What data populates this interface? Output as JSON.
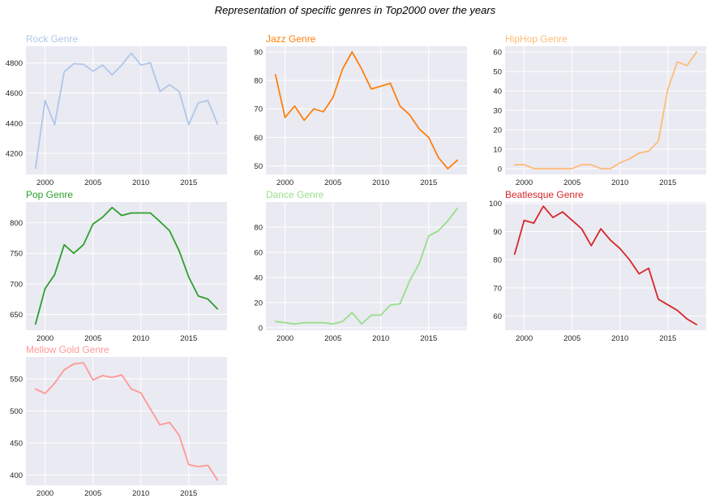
{
  "suptitle": "Representation of specific genres in Top2000 over the years",
  "chart_data": [
    {
      "type": "line",
      "title": "Rock Genre",
      "color": "#aec7e8",
      "x": [
        1999,
        2000,
        2001,
        2002,
        2003,
        2004,
        2005,
        2006,
        2007,
        2008,
        2009,
        2010,
        2011,
        2012,
        2013,
        2014,
        2015,
        2016,
        2017,
        2018
      ],
      "values": [
        4100,
        4550,
        4390,
        4740,
        4795,
        4790,
        4745,
        4785,
        4720,
        4785,
        4865,
        4785,
        4800,
        4610,
        4655,
        4610,
        4390,
        4535,
        4550,
        4395
      ],
      "xlim": [
        1998,
        2019
      ],
      "ylim": [
        4060,
        4910
      ],
      "xticks": [
        2000,
        2005,
        2010,
        2015
      ],
      "yticks": [
        4200,
        4400,
        4600,
        4800
      ]
    },
    {
      "type": "line",
      "title": "Jazz Genre",
      "color": "#ff7f0e",
      "x": [
        1999,
        2000,
        2001,
        2002,
        2003,
        2004,
        2005,
        2006,
        2007,
        2008,
        2009,
        2010,
        2011,
        2012,
        2013,
        2014,
        2015,
        2016,
        2017,
        2018
      ],
      "values": [
        82,
        67,
        71,
        66,
        70,
        69,
        74,
        84,
        90,
        84,
        77,
        78,
        79,
        71,
        68,
        63,
        60,
        53,
        49,
        52
      ],
      "xlim": [
        1998,
        2019
      ],
      "ylim": [
        47,
        92
      ],
      "xticks": [
        2000,
        2005,
        2010,
        2015
      ],
      "yticks": [
        50,
        60,
        70,
        80,
        90
      ]
    },
    {
      "type": "line",
      "title": "HipHop Genre",
      "color": "#ffbb78",
      "x": [
        1999,
        2000,
        2001,
        2002,
        2003,
        2004,
        2005,
        2006,
        2007,
        2008,
        2009,
        2010,
        2011,
        2012,
        2013,
        2014,
        2015,
        2016,
        2017,
        2018
      ],
      "values": [
        2,
        2,
        0,
        0,
        0,
        0,
        0,
        2,
        2,
        0,
        0,
        3,
        5,
        8,
        9,
        14,
        41,
        55,
        53,
        60
      ],
      "xlim": [
        1998,
        2019
      ],
      "ylim": [
        -3,
        63
      ],
      "xticks": [
        2000,
        2005,
        2010,
        2015
      ],
      "yticks": [
        0,
        10,
        20,
        30,
        40,
        50,
        60
      ]
    },
    {
      "type": "line",
      "title": "Pop Genre",
      "color": "#2ca02c",
      "x": [
        1999,
        2000,
        2001,
        2002,
        2003,
        2004,
        2005,
        2006,
        2007,
        2008,
        2009,
        2010,
        2011,
        2012,
        2013,
        2014,
        2015,
        2016,
        2017,
        2018
      ],
      "values": [
        634,
        692,
        715,
        764,
        750,
        764,
        798,
        809,
        825,
        812,
        816,
        816,
        816,
        802,
        787,
        754,
        711,
        680,
        675,
        659
      ],
      "xlim": [
        1998,
        2019
      ],
      "ylim": [
        624,
        834
      ],
      "xticks": [
        2000,
        2005,
        2010,
        2015
      ],
      "yticks": [
        650,
        700,
        750,
        800
      ]
    },
    {
      "type": "line",
      "title": "Dance Genre",
      "color": "#98df8a",
      "x": [
        1999,
        2000,
        2001,
        2002,
        2003,
        2004,
        2005,
        2006,
        2007,
        2008,
        2009,
        2010,
        2011,
        2012,
        2013,
        2014,
        2015,
        2016,
        2017,
        2018
      ],
      "values": [
        5,
        4,
        3,
        4,
        4,
        4,
        3,
        5,
        12,
        3,
        10,
        10,
        18,
        19,
        37,
        51,
        73,
        77,
        85,
        95
      ],
      "xlim": [
        1998,
        2019
      ],
      "ylim": [
        -2,
        100
      ],
      "xticks": [
        2000,
        2005,
        2010,
        2015
      ],
      "yticks": [
        0,
        20,
        40,
        60,
        80
      ]
    },
    {
      "type": "line",
      "title": "Beatlesque Genre",
      "color": "#d62728",
      "x": [
        1999,
        2000,
        2001,
        2002,
        2003,
        2004,
        2005,
        2006,
        2007,
        2008,
        2009,
        2010,
        2011,
        2012,
        2013,
        2014,
        2015,
        2016,
        2017,
        2018
      ],
      "values": [
        82,
        94,
        93,
        99,
        95,
        97,
        94,
        91,
        85,
        91,
        87,
        84,
        80,
        75,
        77,
        66,
        64,
        62,
        59,
        57
      ],
      "xlim": [
        1998,
        2019
      ],
      "ylim": [
        55,
        100.5
      ],
      "xticks": [
        2000,
        2005,
        2010,
        2015
      ],
      "yticks": [
        60,
        70,
        80,
        90,
        100
      ]
    },
    {
      "type": "line",
      "title": "Mellow Gold Genre",
      "color": "#ff9896",
      "x": [
        1999,
        2000,
        2001,
        2002,
        2003,
        2004,
        2005,
        2006,
        2007,
        2008,
        2009,
        2010,
        2011,
        2012,
        2013,
        2014,
        2015,
        2016,
        2017,
        2018
      ],
      "values": [
        534,
        527,
        543,
        564,
        573,
        575,
        548,
        555,
        552,
        556,
        534,
        528,
        503,
        478,
        482,
        462,
        416,
        413,
        415,
        392
      ],
      "xlim": [
        1998,
        2019
      ],
      "ylim": [
        384,
        584
      ],
      "xticks": [
        2000,
        2005,
        2010,
        2015
      ],
      "yticks": [
        400,
        450,
        500,
        550
      ]
    }
  ]
}
